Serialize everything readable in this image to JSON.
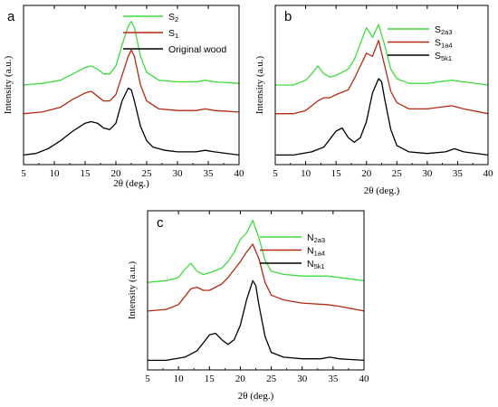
{
  "figure": {
    "chart_data": [
      {
        "type": "line",
        "panel_label": "a",
        "xlabel": "2θ (deg.)",
        "ylabel": "Intensity (a.u.)",
        "xlim": [
          5,
          40
        ],
        "ylim": [
          0,
          100
        ],
        "y_ticks_shown": false,
        "xticks": [
          5,
          10,
          15,
          20,
          25,
          30,
          35,
          40
        ],
        "legend_position": "top-right",
        "series": [
          {
            "name": "S2",
            "legend_base": "S",
            "legend_sub": "2",
            "color": "#3ddc3d",
            "points": [
              [
                5,
                50
              ],
              [
                8,
                51
              ],
              [
                11,
                53
              ],
              [
                13,
                57
              ],
              [
                15,
                61
              ],
              [
                16,
                62
              ],
              [
                17,
                60
              ],
              [
                18,
                57
              ],
              [
                19,
                57
              ],
              [
                20,
                62
              ],
              [
                21,
                75
              ],
              [
                22,
                87
              ],
              [
                22.5,
                90
              ],
              [
                23,
                86
              ],
              [
                24,
                68
              ],
              [
                25,
                58
              ],
              [
                27,
                53
              ],
              [
                30,
                52
              ],
              [
                33,
                52
              ],
              [
                34.5,
                53
              ],
              [
                36,
                52
              ],
              [
                40,
                51
              ]
            ]
          },
          {
            "name": "S1",
            "legend_base": "S",
            "legend_sub": "1",
            "color": "#b22a10",
            "points": [
              [
                5,
                32
              ],
              [
                8,
                33
              ],
              [
                11,
                36
              ],
              [
                13,
                41
              ],
              [
                15,
                45
              ],
              [
                16,
                46
              ],
              [
                17,
                43
              ],
              [
                18,
                40
              ],
              [
                19,
                40
              ],
              [
                20,
                44
              ],
              [
                21,
                56
              ],
              [
                22,
                68
              ],
              [
                22.5,
                72
              ],
              [
                23,
                68
              ],
              [
                24,
                50
              ],
              [
                25,
                40
              ],
              [
                27,
                35
              ],
              [
                30,
                34
              ],
              [
                33,
                34
              ],
              [
                34.5,
                35
              ],
              [
                36,
                34
              ],
              [
                40,
                33
              ]
            ]
          },
          {
            "name": "Original wood",
            "color": "#000000",
            "points": [
              [
                5,
                6
              ],
              [
                7,
                7
              ],
              [
                9,
                10
              ],
              [
                11,
                15
              ],
              [
                13,
                21
              ],
              [
                15,
                26
              ],
              [
                16,
                27
              ],
              [
                17,
                26
              ],
              [
                18,
                23
              ],
              [
                19,
                22
              ],
              [
                20,
                26
              ],
              [
                21,
                40
              ],
              [
                22,
                48
              ],
              [
                22.5,
                47
              ],
              [
                23,
                40
              ],
              [
                24,
                24
              ],
              [
                25,
                15
              ],
              [
                26,
                11
              ],
              [
                28,
                9
              ],
              [
                30,
                8
              ],
              [
                33,
                8
              ],
              [
                34.5,
                9
              ],
              [
                36,
                8
              ],
              [
                40,
                6
              ]
            ]
          }
        ]
      },
      {
        "type": "line",
        "panel_label": "b",
        "xlabel": "2θ (deg.)",
        "ylabel": "Intensity (a.u.)",
        "xlim": [
          5,
          40
        ],
        "ylim": [
          0,
          100
        ],
        "y_ticks_shown": false,
        "xticks": [
          5,
          10,
          15,
          20,
          25,
          30,
          35,
          40
        ],
        "legend_position": "top-right",
        "series": [
          {
            "name": "S2a3",
            "legend_base": "S",
            "legend_sub": "2a3",
            "color": "#3ddc3d",
            "points": [
              [
                5,
                50
              ],
              [
                8,
                50
              ],
              [
                10,
                53
              ],
              [
                11,
                57
              ],
              [
                12,
                62
              ],
              [
                13,
                57
              ],
              [
                14,
                55
              ],
              [
                15,
                56
              ],
              [
                17,
                60
              ],
              [
                18,
                66
              ],
              [
                19,
                76
              ],
              [
                20,
                86
              ],
              [
                21,
                80
              ],
              [
                22,
                88
              ],
              [
                23,
                75
              ],
              [
                24,
                60
              ],
              [
                25,
                54
              ],
              [
                27,
                51
              ],
              [
                30,
                51
              ],
              [
                34,
                53
              ],
              [
                36,
                52
              ],
              [
                40,
                50
              ]
            ]
          },
          {
            "name": "S1a4",
            "legend_base": "S",
            "legend_sub": "1a4",
            "color": "#b22a10",
            "points": [
              [
                5,
                32
              ],
              [
                8,
                32
              ],
              [
                10,
                34
              ],
              [
                11,
                37
              ],
              [
                12,
                40
              ],
              [
                13,
                42
              ],
              [
                14,
                42
              ],
              [
                15,
                44
              ],
              [
                17,
                47
              ],
              [
                18,
                54
              ],
              [
                19,
                62
              ],
              [
                20,
                70
              ],
              [
                21,
                68
              ],
              [
                22,
                78
              ],
              [
                23,
                62
              ],
              [
                24,
                46
              ],
              [
                25,
                39
              ],
              [
                27,
                35
              ],
              [
                30,
                35
              ],
              [
                34,
                37
              ],
              [
                36,
                35
              ],
              [
                40,
                32
              ]
            ]
          },
          {
            "name": "S5k1",
            "legend_base": "S",
            "legend_sub": "5k1",
            "color": "#000000",
            "points": [
              [
                5,
                6
              ],
              [
                8,
                6
              ],
              [
                11,
                8
              ],
              [
                13,
                11
              ],
              [
                14,
                16
              ],
              [
                15,
                21
              ],
              [
                16,
                23
              ],
              [
                17,
                17
              ],
              [
                18,
                14
              ],
              [
                19,
                17
              ],
              [
                20,
                27
              ],
              [
                21,
                45
              ],
              [
                22,
                54
              ],
              [
                22.5,
                52
              ],
              [
                23,
                41
              ],
              [
                24,
                22
              ],
              [
                25,
                12
              ],
              [
                27,
                8
              ],
              [
                30,
                7
              ],
              [
                33,
                8
              ],
              [
                34.5,
                10
              ],
              [
                36,
                8
              ],
              [
                40,
                6
              ]
            ]
          }
        ]
      },
      {
        "type": "line",
        "panel_label": "c",
        "xlabel": "2θ (deg.)",
        "ylabel": "Intensity (a.u.)",
        "xlim": [
          5,
          40
        ],
        "ylim": [
          0,
          100
        ],
        "y_ticks_shown": false,
        "xticks": [
          5,
          10,
          15,
          20,
          25,
          30,
          35,
          40
        ],
        "legend_position": "top-right",
        "series": [
          {
            "name": "N2a3",
            "legend_base": "N",
            "legend_sub": "2a3",
            "color": "#3ddc3d",
            "points": [
              [
                5,
                55
              ],
              [
                8,
                56
              ],
              [
                10,
                58
              ],
              [
                11,
                63
              ],
              [
                12,
                67
              ],
              [
                13,
                62
              ],
              [
                14,
                60
              ],
              [
                15,
                61
              ],
              [
                17,
                64
              ],
              [
                18,
                68
              ],
              [
                19,
                74
              ],
              [
                20,
                82
              ],
              [
                21,
                86
              ],
              [
                22,
                94
              ],
              [
                23,
                83
              ],
              [
                24,
                69
              ],
              [
                25,
                62
              ],
              [
                27,
                60
              ],
              [
                30,
                59
              ],
              [
                34,
                59
              ],
              [
                36,
                58
              ],
              [
                40,
                56
              ]
            ]
          },
          {
            "name": "N1a4",
            "legend_base": "N",
            "legend_sub": "1a4",
            "color": "#b22a10",
            "points": [
              [
                5,
                37
              ],
              [
                8,
                38
              ],
              [
                10,
                41
              ],
              [
                11,
                46
              ],
              [
                12,
                51
              ],
              [
                13,
                52
              ],
              [
                14,
                50
              ],
              [
                15,
                50
              ],
              [
                17,
                54
              ],
              [
                18,
                58
              ],
              [
                19,
                63
              ],
              [
                20,
                68
              ],
              [
                21,
                74
              ],
              [
                22,
                79
              ],
              [
                23,
                70
              ],
              [
                24,
                55
              ],
              [
                25,
                47
              ],
              [
                27,
                44
              ],
              [
                30,
                42
              ],
              [
                34,
                41
              ],
              [
                36,
                40
              ],
              [
                40,
                37
              ]
            ]
          },
          {
            "name": "N5k1",
            "legend_base": "N",
            "legend_sub": "5k1",
            "color": "#000000",
            "points": [
              [
                5,
                6
              ],
              [
                8,
                6
              ],
              [
                11,
                8
              ],
              [
                13,
                12
              ],
              [
                14,
                17
              ],
              [
                15,
                22
              ],
              [
                16,
                23
              ],
              [
                17,
                19
              ],
              [
                18,
                16
              ],
              [
                19,
                19
              ],
              [
                20,
                28
              ],
              [
                21,
                44
              ],
              [
                22,
                56
              ],
              [
                22.5,
                53
              ],
              [
                23,
                41
              ],
              [
                24,
                21
              ],
              [
                25,
                11
              ],
              [
                27,
                8
              ],
              [
                30,
                7
              ],
              [
                33,
                7
              ],
              [
                34.5,
                8
              ],
              [
                36,
                7
              ],
              [
                40,
                6
              ]
            ]
          }
        ]
      }
    ]
  }
}
